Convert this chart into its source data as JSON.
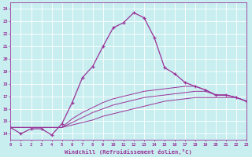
{
  "xlabel": "Windchill (Refroidissement éolien,°C)",
  "bg_color": "#c8eef0",
  "grid_color": "#aadddd",
  "line_color": "#993399",
  "x_values": [
    0,
    1,
    2,
    3,
    4,
    5,
    6,
    7,
    8,
    9,
    10,
    11,
    12,
    13,
    14,
    15,
    16,
    17,
    18,
    19,
    20,
    21,
    22,
    23
  ],
  "main_curve": [
    14.5,
    14.0,
    14.4,
    14.4,
    13.9,
    14.8,
    16.5,
    18.5,
    19.4,
    21.0,
    22.5,
    22.9,
    23.7,
    23.3,
    21.7,
    19.3,
    18.8,
    18.1,
    17.8,
    17.5,
    17.1,
    17.1,
    16.9,
    16.6
  ],
  "line2": [
    14.5,
    14.5,
    14.5,
    14.5,
    14.5,
    14.5,
    14.7,
    14.9,
    15.1,
    15.4,
    15.6,
    15.8,
    16.0,
    16.2,
    16.4,
    16.6,
    16.7,
    16.8,
    16.9,
    16.9,
    16.9,
    16.9,
    16.9,
    16.6
  ],
  "line3": [
    14.5,
    14.5,
    14.5,
    14.5,
    14.5,
    14.5,
    14.9,
    15.3,
    15.7,
    16.0,
    16.3,
    16.5,
    16.7,
    16.9,
    17.0,
    17.1,
    17.2,
    17.3,
    17.4,
    17.4,
    17.1,
    17.1,
    16.9,
    16.6
  ],
  "line4": [
    14.5,
    14.5,
    14.5,
    14.5,
    14.5,
    14.5,
    15.2,
    15.7,
    16.1,
    16.5,
    16.8,
    17.0,
    17.2,
    17.4,
    17.5,
    17.6,
    17.7,
    17.8,
    17.8,
    17.5,
    17.1,
    17.1,
    16.9,
    16.6
  ],
  "ylim": [
    13.5,
    24.5
  ],
  "xlim": [
    0,
    23
  ],
  "yticks": [
    14,
    15,
    16,
    17,
    18,
    19,
    20,
    21,
    22,
    23,
    24
  ],
  "xticks": [
    0,
    1,
    2,
    3,
    4,
    5,
    6,
    7,
    8,
    9,
    10,
    11,
    12,
    13,
    14,
    15,
    16,
    17,
    18,
    19,
    20,
    21,
    22,
    23
  ]
}
